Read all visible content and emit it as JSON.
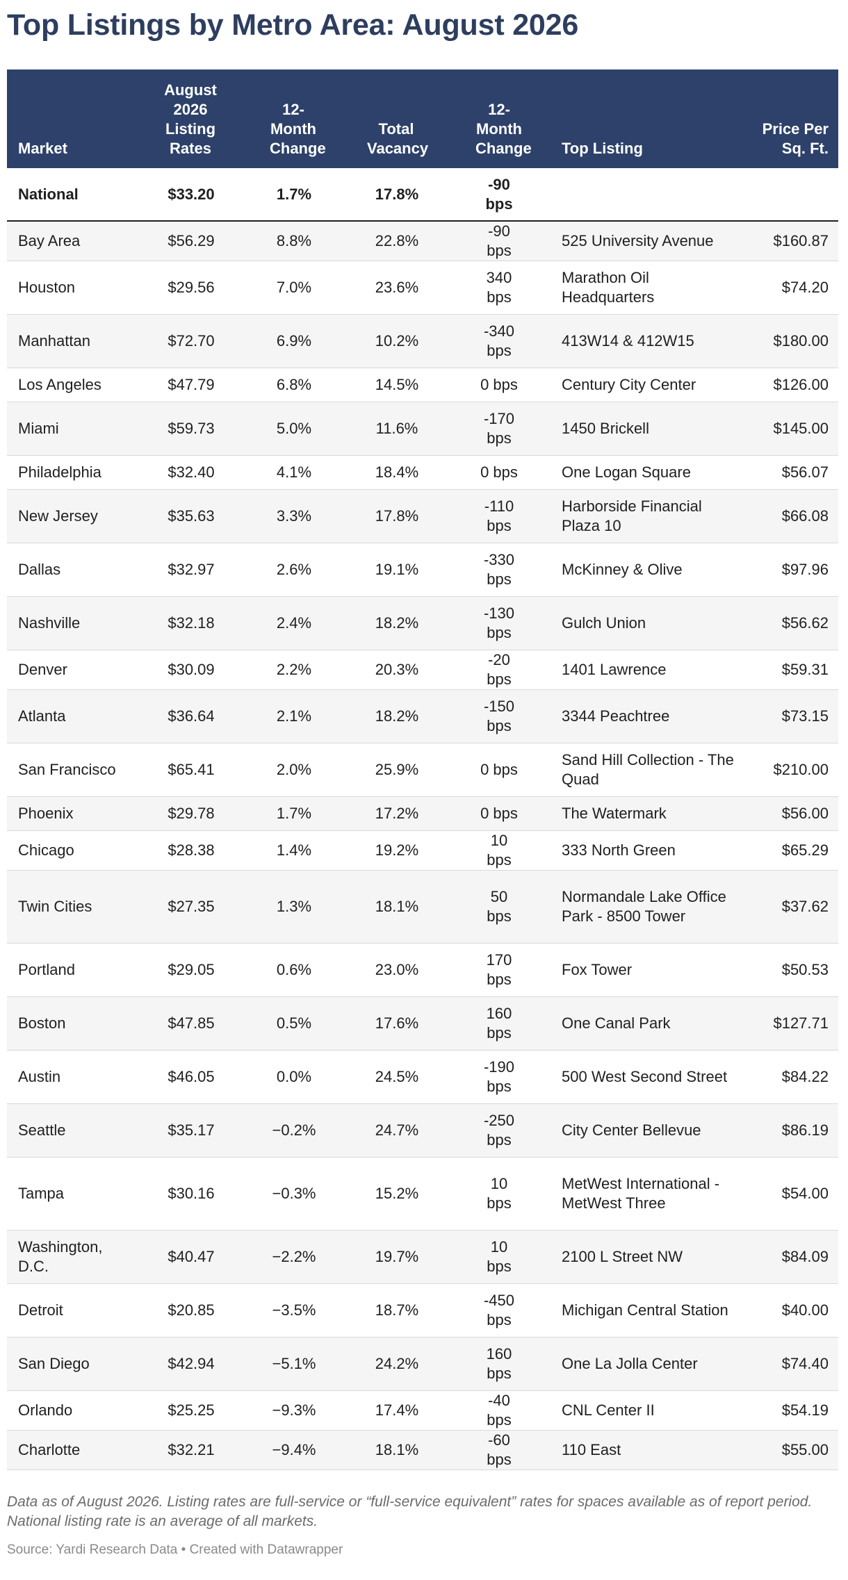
{
  "title": "Top Listings by Metro Area: August 2026",
  "table": {
    "headers": {
      "market": "Market",
      "listing_rates": "August 2026 Listing Rates",
      "rate_change": "12-Month Change",
      "total_vacancy": "Total Vacancy",
      "vacancy_change": "12-Month Change",
      "top_listing": "Top Listing",
      "price_per_sqft": "Price Per Sq. Ft."
    },
    "national": {
      "market": "National",
      "rate": "$33.20",
      "rate_change": "1.7%",
      "vacancy": "17.8%",
      "vacancy_change": "-90 bps",
      "top_listing": "",
      "price": ""
    },
    "rows": [
      {
        "market": "Bay Area",
        "rate": "$56.29",
        "rate_change": "8.8%",
        "vacancy": "22.8%",
        "vacancy_change": "-90 bps",
        "top_listing": "525 University Avenue",
        "price": "$160.87"
      },
      {
        "market": "Houston",
        "rate": "$29.56",
        "rate_change": "7.0%",
        "vacancy": "23.6%",
        "vacancy_change": "340 bps",
        "top_listing": "Marathon Oil Headquarters",
        "price": "$74.20"
      },
      {
        "market": "Manhattan",
        "rate": "$72.70",
        "rate_change": "6.9%",
        "vacancy": "10.2%",
        "vacancy_change": "-340 bps",
        "top_listing": "413W14 & 412W15",
        "price": "$180.00"
      },
      {
        "market": "Los Angeles",
        "rate": "$47.79",
        "rate_change": "6.8%",
        "vacancy": "14.5%",
        "vacancy_change": "0 bps",
        "top_listing": "Century City Center",
        "price": "$126.00"
      },
      {
        "market": "Miami",
        "rate": "$59.73",
        "rate_change": "5.0%",
        "vacancy": "11.6%",
        "vacancy_change": "-170 bps",
        "top_listing": "1450 Brickell",
        "price": "$145.00"
      },
      {
        "market": "Philadelphia",
        "rate": "$32.40",
        "rate_change": "4.1%",
        "vacancy": "18.4%",
        "vacancy_change": "0 bps",
        "top_listing": "One Logan Square",
        "price": "$56.07"
      },
      {
        "market": "New Jersey",
        "rate": "$35.63",
        "rate_change": "3.3%",
        "vacancy": "17.8%",
        "vacancy_change": "-110 bps",
        "top_listing": "Harborside Financial Plaza 10",
        "price": "$66.08"
      },
      {
        "market": "Dallas",
        "rate": "$32.97",
        "rate_change": "2.6%",
        "vacancy": "19.1%",
        "vacancy_change": "-330 bps",
        "top_listing": "McKinney & Olive",
        "price": "$97.96"
      },
      {
        "market": "Nashville",
        "rate": "$32.18",
        "rate_change": "2.4%",
        "vacancy": "18.2%",
        "vacancy_change": "-130 bps",
        "top_listing": "Gulch Union",
        "price": "$56.62"
      },
      {
        "market": "Denver",
        "rate": "$30.09",
        "rate_change": "2.2%",
        "vacancy": "20.3%",
        "vacancy_change": "-20 bps",
        "top_listing": "1401 Lawrence",
        "price": "$59.31"
      },
      {
        "market": "Atlanta",
        "rate": "$36.64",
        "rate_change": "2.1%",
        "vacancy": "18.2%",
        "vacancy_change": "-150 bps",
        "top_listing": "3344 Peachtree",
        "price": "$73.15"
      },
      {
        "market": "San Francisco",
        "rate": "$65.41",
        "rate_change": "2.0%",
        "vacancy": "25.9%",
        "vacancy_change": "0 bps",
        "top_listing": "Sand Hill Collection - The Quad",
        "price": "$210.00"
      },
      {
        "market": "Phoenix",
        "rate": "$29.78",
        "rate_change": "1.7%",
        "vacancy": "17.2%",
        "vacancy_change": "0 bps",
        "top_listing": "The Watermark",
        "price": "$56.00"
      },
      {
        "market": "Chicago",
        "rate": "$28.38",
        "rate_change": "1.4%",
        "vacancy": "19.2%",
        "vacancy_change": "10 bps",
        "top_listing": "333 North Green",
        "price": "$65.29"
      },
      {
        "market": "Twin Cities",
        "rate": "$27.35",
        "rate_change": "1.3%",
        "vacancy": "18.1%",
        "vacancy_change": "50 bps",
        "top_listing": "Normandale Lake Office Park - 8500 Tower",
        "price": "$37.62"
      },
      {
        "market": "Portland",
        "rate": "$29.05",
        "rate_change": "0.6%",
        "vacancy": "23.0%",
        "vacancy_change": "170 bps",
        "top_listing": "Fox Tower",
        "price": "$50.53"
      },
      {
        "market": "Boston",
        "rate": "$47.85",
        "rate_change": "0.5%",
        "vacancy": "17.6%",
        "vacancy_change": "160 bps",
        "top_listing": "One Canal Park",
        "price": "$127.71"
      },
      {
        "market": "Austin",
        "rate": "$46.05",
        "rate_change": "0.0%",
        "vacancy": "24.5%",
        "vacancy_change": "-190 bps",
        "top_listing": "500 West Second Street",
        "price": "$84.22"
      },
      {
        "market": "Seattle",
        "rate": "$35.17",
        "rate_change": "−0.2%",
        "vacancy": "24.7%",
        "vacancy_change": "-250 bps",
        "top_listing": "City Center Bellevue",
        "price": "$86.19"
      },
      {
        "market": "Tampa",
        "rate": "$30.16",
        "rate_change": "−0.3%",
        "vacancy": "15.2%",
        "vacancy_change": "10 bps",
        "top_listing": "MetWest International - MetWest Three",
        "price": "$54.00"
      },
      {
        "market": "Washington, D.C.",
        "rate": "$40.47",
        "rate_change": "−2.2%",
        "vacancy": "19.7%",
        "vacancy_change": "10 bps",
        "top_listing": "2100 L Street NW",
        "price": "$84.09"
      },
      {
        "market": "Detroit",
        "rate": "$20.85",
        "rate_change": "−3.5%",
        "vacancy": "18.7%",
        "vacancy_change": "-450 bps",
        "top_listing": "Michigan Central Station",
        "price": "$40.00"
      },
      {
        "market": "San Diego",
        "rate": "$42.94",
        "rate_change": "−5.1%",
        "vacancy": "24.2%",
        "vacancy_change": "160 bps",
        "top_listing": "One La Jolla Center",
        "price": "$74.40"
      },
      {
        "market": "Orlando",
        "rate": "$25.25",
        "rate_change": "−9.3%",
        "vacancy": "17.4%",
        "vacancy_change": "-40 bps",
        "top_listing": "CNL Center II",
        "price": "$54.19"
      },
      {
        "market": "Charlotte",
        "rate": "$32.21",
        "rate_change": "−9.4%",
        "vacancy": "18.1%",
        "vacancy_change": "-60 bps",
        "top_listing": "110 East",
        "price": "$55.00"
      }
    ]
  },
  "footnote": "Data as of August 2026. Listing rates are full-service or “full-service equivalent” rates for spaces available as of report period. National listing rate is an average of all markets.",
  "source": "Source: Yardi Research Data • Created with Datawrapper",
  "colors": {
    "title": "#2d3e5e",
    "header_background": "#2d416a",
    "header_text": "#ffffff",
    "stripe": "#f5f5f5",
    "footnote": "#6b6b6b"
  }
}
